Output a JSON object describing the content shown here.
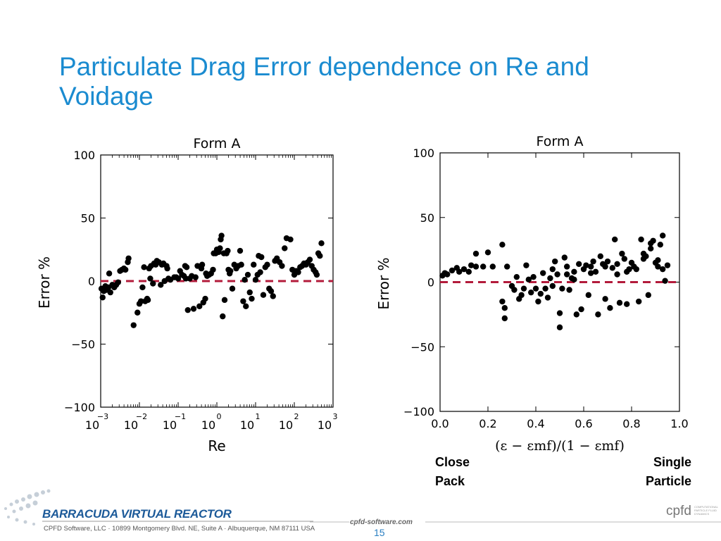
{
  "slide": {
    "title": "Particulate Drag Error dependence on Re and Voidage",
    "annotation_left": "Close\nPack",
    "annotation_right": "Single\nParticle",
    "footer_logo": "BARRACUDA VIRTUAL REACTOR",
    "footer_address": "CPFD Software, LLC · 10899 Montgomery Blvd. NE, Suite A · Albuquerque, NM 87111 USA",
    "footer_site": "cpfd-software.com",
    "page_number": "15",
    "cpfd_logo": "cpfd",
    "cpfd_tagline": "COMPUTATIONAL PARTICLE FLUID DYNAMICS"
  },
  "colors": {
    "title": "#1a8bd0",
    "reference_line": "#b31b3b",
    "points": "#000000"
  },
  "chart_data": [
    {
      "type": "scatter",
      "title": "Form A",
      "xlabel": "Re",
      "ylabel": "Error %",
      "xscale": "log",
      "xlim": [
        -3,
        3
      ],
      "ylim": [
        -100,
        100
      ],
      "yticks": [
        "100",
        "50",
        "0",
        "−50",
        "−100"
      ],
      "xticks": [
        {
          "base": "10",
          "exp": "−3"
        },
        {
          "base": "10",
          "exp": "−2"
        },
        {
          "base": "10",
          "exp": "−1"
        },
        {
          "base": "10",
          "exp": "0"
        },
        {
          "base": "10",
          "exp": "1"
        },
        {
          "base": "10",
          "exp": "2"
        },
        {
          "base": "10",
          "exp": "3"
        }
      ],
      "reference_line": {
        "y": 0,
        "style": "dashed"
      },
      "points": [
        [
          -2.98,
          -6
        ],
        [
          -2.95,
          -13
        ],
        [
          -2.92,
          -8
        ],
        [
          -2.88,
          -4
        ],
        [
          -2.85,
          -7
        ],
        [
          -2.8,
          -5
        ],
        [
          -2.78,
          6
        ],
        [
          -2.75,
          -9
        ],
        [
          -2.7,
          -3
        ],
        [
          -2.65,
          -5
        ],
        [
          -2.6,
          -3
        ],
        [
          -2.55,
          -1
        ],
        [
          -2.5,
          8
        ],
        [
          -2.45,
          9
        ],
        [
          -2.4,
          10
        ],
        [
          -2.36,
          9
        ],
        [
          -2.3,
          15
        ],
        [
          -2.28,
          18
        ],
        [
          -2.15,
          -35
        ],
        [
          -2.05,
          -25
        ],
        [
          -2,
          -18
        ],
        [
          -1.96,
          -16
        ],
        [
          -1.92,
          -5
        ],
        [
          -1.88,
          11
        ],
        [
          -1.85,
          -16
        ],
        [
          -1.8,
          -14
        ],
        [
          -1.78,
          -15
        ],
        [
          -1.75,
          10
        ],
        [
          -1.72,
          2
        ],
        [
          -1.7,
          12
        ],
        [
          -1.65,
          -2
        ],
        [
          -1.62,
          14
        ],
        [
          -1.58,
          13
        ],
        [
          -1.55,
          16
        ],
        [
          -1.5,
          15
        ],
        [
          -1.45,
          -3
        ],
        [
          -1.42,
          13
        ],
        [
          -1.38,
          14
        ],
        [
          -1.35,
          0
        ],
        [
          -1.3,
          12
        ],
        [
          -1.28,
          10
        ],
        [
          -1.25,
          2
        ],
        [
          -1.2,
          1
        ],
        [
          -1.1,
          3
        ],
        [
          -1.05,
          3
        ],
        [
          -1,
          2
        ],
        [
          -0.95,
          8
        ],
        [
          -0.9,
          5
        ],
        [
          -0.85,
          4
        ],
        [
          -0.82,
          12
        ],
        [
          -0.8,
          2
        ],
        [
          -0.78,
          11
        ],
        [
          -0.75,
          -23
        ],
        [
          -0.7,
          2
        ],
        [
          -0.65,
          4
        ],
        [
          -0.6,
          -22
        ],
        [
          -0.55,
          3
        ],
        [
          -0.5,
          12
        ],
        [
          -0.45,
          -20
        ],
        [
          -0.4,
          10
        ],
        [
          -0.38,
          13
        ],
        [
          -0.35,
          -17
        ],
        [
          -0.3,
          -14
        ],
        [
          -0.28,
          6
        ],
        [
          -0.25,
          4
        ],
        [
          -0.2,
          5
        ],
        [
          -0.15,
          6
        ],
        [
          -0.1,
          9
        ],
        [
          -0.08,
          22
        ],
        [
          -0.03,
          22
        ],
        [
          0,
          25
        ],
        [
          0.05,
          23
        ],
        [
          0.08,
          26
        ],
        [
          0.1,
          33
        ],
        [
          0.12,
          36
        ],
        [
          0.15,
          -28
        ],
        [
          0.18,
          22
        ],
        [
          0.2,
          -15
        ],
        [
          0.25,
          22
        ],
        [
          0.28,
          24
        ],
        [
          0.3,
          9
        ],
        [
          0.33,
          6
        ],
        [
          0.35,
          8
        ],
        [
          0.4,
          -6
        ],
        [
          0.45,
          13
        ],
        [
          0.5,
          10
        ],
        [
          0.55,
          12
        ],
        [
          0.6,
          24
        ],
        [
          0.63,
          13
        ],
        [
          0.68,
          -16
        ],
        [
          0.72,
          1
        ],
        [
          0.75,
          -20
        ],
        [
          0.8,
          5
        ],
        [
          0.85,
          -9
        ],
        [
          0.9,
          -14
        ],
        [
          0.95,
          13
        ],
        [
          1,
          1
        ],
        [
          1.05,
          5
        ],
        [
          1.08,
          20
        ],
        [
          1.12,
          7
        ],
        [
          1.15,
          19
        ],
        [
          1.2,
          -11
        ],
        [
          1.25,
          11
        ],
        [
          1.3,
          13
        ],
        [
          1.35,
          -6
        ],
        [
          1.4,
          -8
        ],
        [
          1.45,
          -12
        ],
        [
          1.5,
          16
        ],
        [
          1.55,
          18
        ],
        [
          1.62,
          15
        ],
        [
          1.68,
          12
        ],
        [
          1.75,
          26
        ],
        [
          1.8,
          34
        ],
        [
          1.9,
          33
        ],
        [
          1.95,
          9
        ],
        [
          2,
          5
        ],
        [
          2.05,
          8
        ],
        [
          2.1,
          7
        ],
        [
          2.15,
          11
        ],
        [
          2.2,
          12
        ],
        [
          2.25,
          14
        ],
        [
          2.3,
          13
        ],
        [
          2.35,
          15
        ],
        [
          2.4,
          17
        ],
        [
          2.45,
          12
        ],
        [
          2.5,
          9
        ],
        [
          2.55,
          7
        ],
        [
          2.58,
          5
        ],
        [
          2.62,
          22
        ],
        [
          2.66,
          20
        ],
        [
          2.7,
          30
        ]
      ]
    },
    {
      "type": "scatter",
      "title": "Form A",
      "xlabel": "(ε − εmf)/(1 − εmf)",
      "ylabel": "Error %",
      "xlim": [
        0,
        1
      ],
      "ylim": [
        -100,
        100
      ],
      "yticks": [
        "100",
        "50",
        "0",
        "−50",
        "−100"
      ],
      "xticks": [
        "0.0",
        "0.2",
        "0.4",
        "0.6",
        "0.8",
        "1.0"
      ],
      "reference_line": {
        "y": 0,
        "style": "dashed"
      },
      "points": [
        [
          0.01,
          5
        ],
        [
          0.02,
          7
        ],
        [
          0.03,
          6
        ],
        [
          0.05,
          9
        ],
        [
          0.07,
          11
        ],
        [
          0.08,
          8
        ],
        [
          0.1,
          10
        ],
        [
          0.12,
          8
        ],
        [
          0.13,
          13
        ],
        [
          0.15,
          12
        ],
        [
          0.15,
          22
        ],
        [
          0.18,
          12
        ],
        [
          0.2,
          23
        ],
        [
          0.22,
          12
        ],
        [
          0.26,
          29
        ],
        [
          0.27,
          -28
        ],
        [
          0.26,
          -15
        ],
        [
          0.27,
          -20
        ],
        [
          0.28,
          12
        ],
        [
          0.3,
          -3
        ],
        [
          0.31,
          -6
        ],
        [
          0.32,
          4
        ],
        [
          0.33,
          -13
        ],
        [
          0.34,
          -10
        ],
        [
          0.35,
          -5
        ],
        [
          0.36,
          13
        ],
        [
          0.37,
          2
        ],
        [
          0.38,
          -8
        ],
        [
          0.39,
          4
        ],
        [
          0.4,
          -5
        ],
        [
          0.41,
          -15
        ],
        [
          0.42,
          -9
        ],
        [
          0.43,
          7
        ],
        [
          0.44,
          -5
        ],
        [
          0.45,
          -12
        ],
        [
          0.46,
          3
        ],
        [
          0.47,
          10
        ],
        [
          0.48,
          16
        ],
        [
          0.49,
          6
        ],
        [
          0.5,
          -35
        ],
        [
          0.5,
          -24
        ],
        [
          0.51,
          -5
        ],
        [
          0.52,
          19
        ],
        [
          0.53,
          12
        ],
        [
          0.54,
          -6
        ],
        [
          0.55,
          3
        ],
        [
          0.56,
          8
        ],
        [
          0.57,
          -25
        ],
        [
          0.58,
          14
        ],
        [
          0.59,
          -21
        ],
        [
          0.6,
          10
        ],
        [
          0.61,
          13
        ],
        [
          0.62,
          -10
        ],
        [
          0.63,
          7
        ],
        [
          0.64,
          16
        ],
        [
          0.65,
          8
        ],
        [
          0.66,
          -25
        ],
        [
          0.67,
          20
        ],
        [
          0.68,
          14
        ],
        [
          0.69,
          -13
        ],
        [
          0.7,
          16
        ],
        [
          0.71,
          -20
        ],
        [
          0.72,
          11
        ],
        [
          0.73,
          33
        ],
        [
          0.74,
          6
        ],
        [
          0.75,
          -16
        ],
        [
          0.76,
          22
        ],
        [
          0.77,
          18
        ],
        [
          0.78,
          -17
        ],
        [
          0.79,
          10
        ],
        [
          0.8,
          15
        ],
        [
          0.81,
          12
        ],
        [
          0.82,
          10
        ],
        [
          0.83,
          -15
        ],
        [
          0.84,
          33
        ],
        [
          0.85,
          18
        ],
        [
          0.86,
          20
        ],
        [
          0.87,
          -10
        ],
        [
          0.88,
          30
        ],
        [
          0.89,
          32
        ],
        [
          0.9,
          15
        ],
        [
          0.91,
          17
        ],
        [
          0.92,
          29
        ],
        [
          0.93,
          36
        ],
        [
          0.94,
          1
        ],
        [
          0.95,
          13
        ],
        [
          0.91,
          12
        ],
        [
          0.93,
          10
        ],
        [
          0.88,
          26
        ],
        [
          0.85,
          22
        ],
        [
          0.78,
          8
        ],
        [
          0.74,
          14
        ],
        [
          0.69,
          12
        ],
        [
          0.63,
          12
        ],
        [
          0.56,
          2
        ],
        [
          0.53,
          6
        ],
        [
          0.47,
          -3
        ]
      ]
    }
  ]
}
